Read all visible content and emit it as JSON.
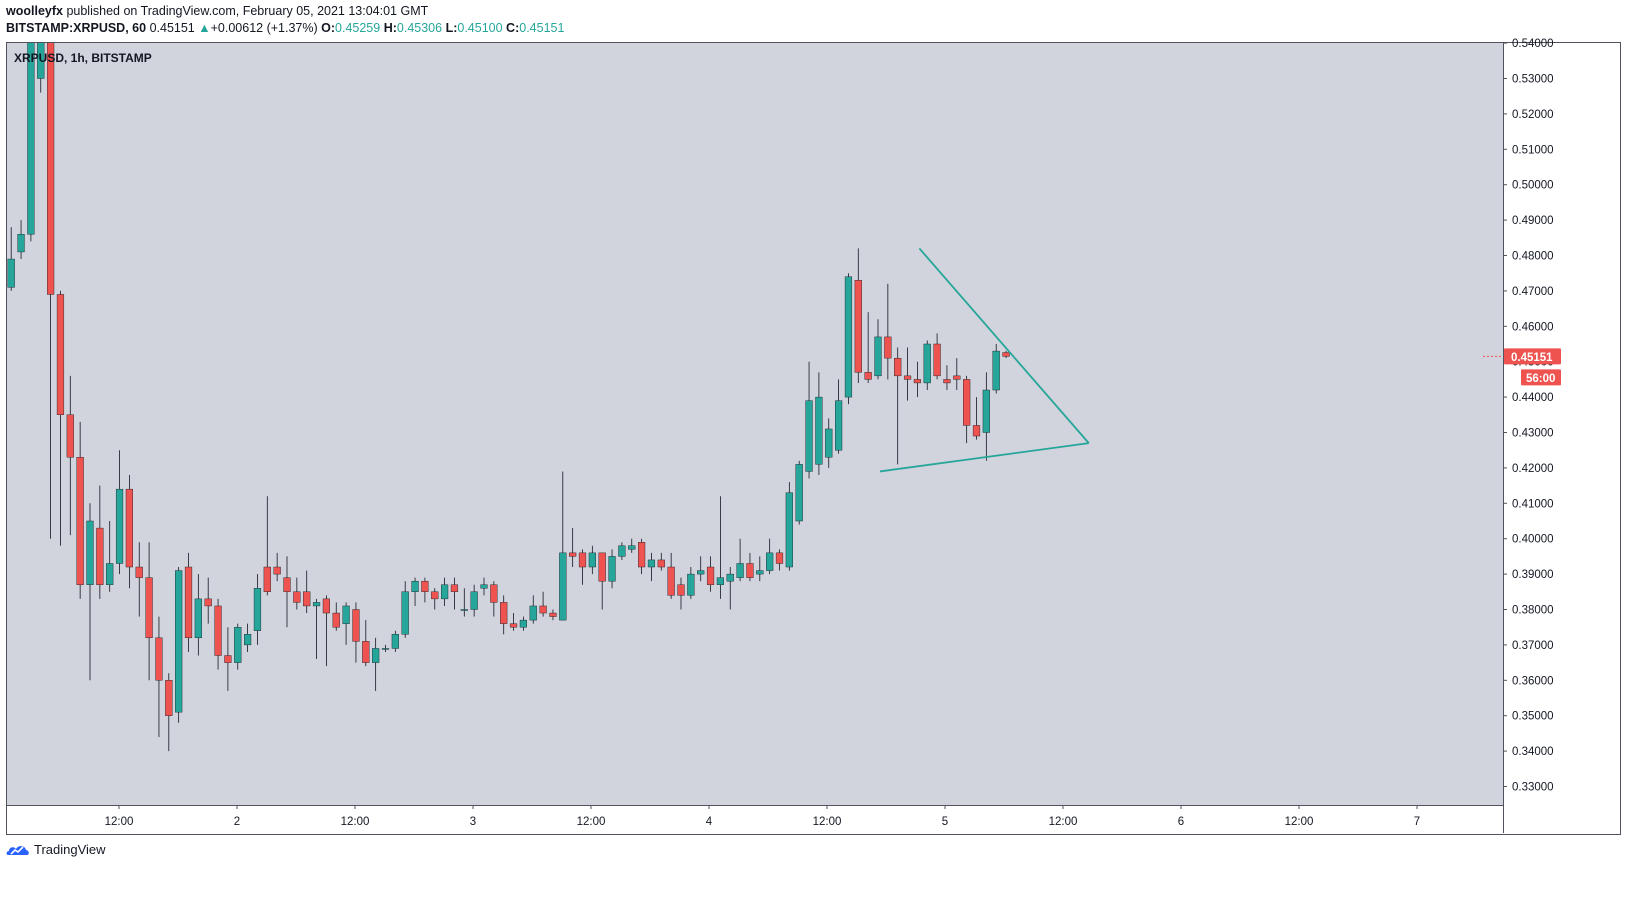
{
  "header": {
    "author": "woolleyfx",
    "published_text": "published on TradingView.com, February 05, 2021 13:04:01 GMT",
    "symbol_line": "BITSTAMP:XRPUSD, 60",
    "last": "0.45151",
    "change_arrow": "▲",
    "change": "+0.00612 (+1.37%)",
    "ohlc": {
      "o_label": "O:",
      "o": "0.45259",
      "h_label": "H:",
      "h": "0.45306",
      "l_label": "L:",
      "l": "0.45100",
      "c_label": "C:",
      "c": "0.45151"
    }
  },
  "chart_label": "XRPUSD, 1h, BITSTAMP",
  "footer": {
    "brand": "TradingView"
  },
  "colors": {
    "background": "#d1d4dc",
    "up": "#26a69a",
    "down": "#ef5350",
    "wick": "#131722",
    "trendline": "#26a69a",
    "price_tag": "#ef5350"
  },
  "chart_data": {
    "type": "candlestick",
    "title": "XRPUSD, 1h, BITSTAMP",
    "ylim": [
      0.325,
      0.545
    ],
    "y_ticks": [
      "0.33000",
      "0.34000",
      "0.35000",
      "0.36000",
      "0.37000",
      "0.38000",
      "0.39000",
      "0.40000",
      "0.41000",
      "0.42000",
      "0.43000",
      "0.44000",
      "0.45000",
      "0.46000",
      "0.47000",
      "0.48000",
      "0.49000",
      "0.50000",
      "0.51000",
      "0.52000",
      "0.53000",
      "0.54000"
    ],
    "x_ticks": [
      "12:00",
      "2",
      "12:00",
      "3",
      "12:00",
      "4",
      "12:00",
      "5",
      "12:00",
      "6",
      "12:00",
      "7"
    ],
    "current_price_label": "0.45151",
    "countdown_label": "56:00",
    "candles": [
      {
        "o": 0.471,
        "h": 0.488,
        "l": 0.47,
        "c": 0.479
      },
      {
        "o": 0.481,
        "h": 0.49,
        "l": 0.479,
        "c": 0.486
      },
      {
        "o": 0.486,
        "h": 0.55,
        "l": 0.484,
        "c": 0.545
      },
      {
        "o": 0.53,
        "h": 0.55,
        "l": 0.526,
        "c": 0.545
      },
      {
        "o": 0.545,
        "h": 0.548,
        "l": 0.4,
        "c": 0.469
      },
      {
        "o": 0.469,
        "h": 0.47,
        "l": 0.398,
        "c": 0.435
      },
      {
        "o": 0.435,
        "h": 0.446,
        "l": 0.401,
        "c": 0.423
      },
      {
        "o": 0.423,
        "h": 0.433,
        "l": 0.383,
        "c": 0.387
      },
      {
        "o": 0.387,
        "h": 0.41,
        "l": 0.36,
        "c": 0.405
      },
      {
        "o": 0.403,
        "h": 0.415,
        "l": 0.383,
        "c": 0.387
      },
      {
        "o": 0.387,
        "h": 0.405,
        "l": 0.385,
        "c": 0.393
      },
      {
        "o": 0.393,
        "h": 0.425,
        "l": 0.39,
        "c": 0.414
      },
      {
        "o": 0.414,
        "h": 0.418,
        "l": 0.386,
        "c": 0.392
      },
      {
        "o": 0.392,
        "h": 0.399,
        "l": 0.378,
        "c": 0.389
      },
      {
        "o": 0.389,
        "h": 0.399,
        "l": 0.36,
        "c": 0.372
      },
      {
        "o": 0.372,
        "h": 0.378,
        "l": 0.344,
        "c": 0.36
      },
      {
        "o": 0.36,
        "h": 0.362,
        "l": 0.34,
        "c": 0.35
      },
      {
        "o": 0.351,
        "h": 0.392,
        "l": 0.348,
        "c": 0.391
      },
      {
        "o": 0.392,
        "h": 0.396,
        "l": 0.368,
        "c": 0.372
      },
      {
        "o": 0.372,
        "h": 0.39,
        "l": 0.367,
        "c": 0.383
      },
      {
        "o": 0.383,
        "h": 0.389,
        "l": 0.376,
        "c": 0.381
      },
      {
        "o": 0.381,
        "h": 0.383,
        "l": 0.363,
        "c": 0.367
      },
      {
        "o": 0.367,
        "h": 0.375,
        "l": 0.357,
        "c": 0.365
      },
      {
        "o": 0.365,
        "h": 0.376,
        "l": 0.363,
        "c": 0.375
      },
      {
        "o": 0.37,
        "h": 0.376,
        "l": 0.368,
        "c": 0.373
      },
      {
        "o": 0.374,
        "h": 0.39,
        "l": 0.37,
        "c": 0.386
      },
      {
        "o": 0.392,
        "h": 0.412,
        "l": 0.384,
        "c": 0.385
      },
      {
        "o": 0.392,
        "h": 0.396,
        "l": 0.388,
        "c": 0.39
      },
      {
        "o": 0.389,
        "h": 0.395,
        "l": 0.375,
        "c": 0.385
      },
      {
        "o": 0.385,
        "h": 0.389,
        "l": 0.38,
        "c": 0.382
      },
      {
        "o": 0.385,
        "h": 0.391,
        "l": 0.379,
        "c": 0.381
      },
      {
        "o": 0.381,
        "h": 0.383,
        "l": 0.366,
        "c": 0.382
      },
      {
        "o": 0.383,
        "h": 0.384,
        "l": 0.364,
        "c": 0.379
      },
      {
        "o": 0.379,
        "h": 0.382,
        "l": 0.374,
        "c": 0.375
      },
      {
        "o": 0.376,
        "h": 0.382,
        "l": 0.37,
        "c": 0.381
      },
      {
        "o": 0.38,
        "h": 0.382,
        "l": 0.365,
        "c": 0.371
      },
      {
        "o": 0.371,
        "h": 0.377,
        "l": 0.364,
        "c": 0.365
      },
      {
        "o": 0.365,
        "h": 0.372,
        "l": 0.357,
        "c": 0.369
      },
      {
        "o": 0.369,
        "h": 0.37,
        "l": 0.368,
        "c": 0.369
      },
      {
        "o": 0.369,
        "h": 0.374,
        "l": 0.368,
        "c": 0.373
      },
      {
        "o": 0.373,
        "h": 0.388,
        "l": 0.372,
        "c": 0.385
      },
      {
        "o": 0.385,
        "h": 0.389,
        "l": 0.381,
        "c": 0.388
      },
      {
        "o": 0.388,
        "h": 0.389,
        "l": 0.382,
        "c": 0.385
      },
      {
        "o": 0.385,
        "h": 0.386,
        "l": 0.38,
        "c": 0.383
      },
      {
        "o": 0.383,
        "h": 0.389,
        "l": 0.381,
        "c": 0.387
      },
      {
        "o": 0.387,
        "h": 0.389,
        "l": 0.38,
        "c": 0.385
      },
      {
        "o": 0.38,
        "h": 0.386,
        "l": 0.378,
        "c": 0.38
      },
      {
        "o": 0.38,
        "h": 0.387,
        "l": 0.378,
        "c": 0.385
      },
      {
        "o": 0.386,
        "h": 0.389,
        "l": 0.384,
        "c": 0.387
      },
      {
        "o": 0.387,
        "h": 0.388,
        "l": 0.378,
        "c": 0.382
      },
      {
        "o": 0.382,
        "h": 0.384,
        "l": 0.373,
        "c": 0.376
      },
      {
        "o": 0.376,
        "h": 0.379,
        "l": 0.374,
        "c": 0.375
      },
      {
        "o": 0.375,
        "h": 0.378,
        "l": 0.374,
        "c": 0.377
      },
      {
        "o": 0.377,
        "h": 0.384,
        "l": 0.376,
        "c": 0.381
      },
      {
        "o": 0.381,
        "h": 0.385,
        "l": 0.378,
        "c": 0.379
      },
      {
        "o": 0.379,
        "h": 0.38,
        "l": 0.377,
        "c": 0.378
      },
      {
        "o": 0.377,
        "h": 0.419,
        "l": 0.377,
        "c": 0.396
      },
      {
        "o": 0.396,
        "h": 0.403,
        "l": 0.392,
        "c": 0.395
      },
      {
        "o": 0.396,
        "h": 0.397,
        "l": 0.387,
        "c": 0.392
      },
      {
        "o": 0.392,
        "h": 0.398,
        "l": 0.39,
        "c": 0.396
      },
      {
        "o": 0.396,
        "h": 0.396,
        "l": 0.38,
        "c": 0.388
      },
      {
        "o": 0.388,
        "h": 0.397,
        "l": 0.386,
        "c": 0.395
      },
      {
        "o": 0.395,
        "h": 0.399,
        "l": 0.394,
        "c": 0.398
      },
      {
        "o": 0.397,
        "h": 0.4,
        "l": 0.396,
        "c": 0.398
      },
      {
        "o": 0.399,
        "h": 0.4,
        "l": 0.39,
        "c": 0.392
      },
      {
        "o": 0.392,
        "h": 0.396,
        "l": 0.388,
        "c": 0.394
      },
      {
        "o": 0.394,
        "h": 0.396,
        "l": 0.391,
        "c": 0.392
      },
      {
        "o": 0.392,
        "h": 0.396,
        "l": 0.383,
        "c": 0.384
      },
      {
        "o": 0.387,
        "h": 0.389,
        "l": 0.38,
        "c": 0.384
      },
      {
        "o": 0.384,
        "h": 0.392,
        "l": 0.383,
        "c": 0.39
      },
      {
        "o": 0.39,
        "h": 0.395,
        "l": 0.388,
        "c": 0.391
      },
      {
        "o": 0.392,
        "h": 0.395,
        "l": 0.385,
        "c": 0.387
      },
      {
        "o": 0.387,
        "h": 0.412,
        "l": 0.383,
        "c": 0.389
      },
      {
        "o": 0.388,
        "h": 0.392,
        "l": 0.38,
        "c": 0.39
      },
      {
        "o": 0.389,
        "h": 0.4,
        "l": 0.388,
        "c": 0.393
      },
      {
        "o": 0.393,
        "h": 0.396,
        "l": 0.388,
        "c": 0.389
      },
      {
        "o": 0.39,
        "h": 0.395,
        "l": 0.388,
        "c": 0.391
      },
      {
        "o": 0.391,
        "h": 0.4,
        "l": 0.39,
        "c": 0.396
      },
      {
        "o": 0.396,
        "h": 0.397,
        "l": 0.391,
        "c": 0.393
      },
      {
        "o": 0.392,
        "h": 0.416,
        "l": 0.391,
        "c": 0.413
      },
      {
        "o": 0.405,
        "h": 0.422,
        "l": 0.404,
        "c": 0.421
      },
      {
        "o": 0.419,
        "h": 0.45,
        "l": 0.417,
        "c": 0.439
      },
      {
        "o": 0.421,
        "h": 0.447,
        "l": 0.418,
        "c": 0.44
      },
      {
        "o": 0.423,
        "h": 0.434,
        "l": 0.42,
        "c": 0.431
      },
      {
        "o": 0.425,
        "h": 0.445,
        "l": 0.424,
        "c": 0.439
      },
      {
        "o": 0.44,
        "h": 0.475,
        "l": 0.438,
        "c": 0.474
      },
      {
        "o": 0.473,
        "h": 0.482,
        "l": 0.444,
        "c": 0.447
      },
      {
        "o": 0.447,
        "h": 0.464,
        "l": 0.444,
        "c": 0.445
      },
      {
        "o": 0.446,
        "h": 0.462,
        "l": 0.445,
        "c": 0.457
      },
      {
        "o": 0.457,
        "h": 0.472,
        "l": 0.445,
        "c": 0.451
      },
      {
        "o": 0.451,
        "h": 0.454,
        "l": 0.421,
        "c": 0.446
      },
      {
        "o": 0.446,
        "h": 0.454,
        "l": 0.439,
        "c": 0.445
      },
      {
        "o": 0.445,
        "h": 0.45,
        "l": 0.44,
        "c": 0.444
      },
      {
        "o": 0.444,
        "h": 0.456,
        "l": 0.442,
        "c": 0.455
      },
      {
        "o": 0.455,
        "h": 0.458,
        "l": 0.445,
        "c": 0.446
      },
      {
        "o": 0.445,
        "h": 0.449,
        "l": 0.442,
        "c": 0.444
      },
      {
        "o": 0.446,
        "h": 0.451,
        "l": 0.442,
        "c": 0.445
      },
      {
        "o": 0.445,
        "h": 0.446,
        "l": 0.427,
        "c": 0.432
      },
      {
        "o": 0.432,
        "h": 0.44,
        "l": 0.428,
        "c": 0.429
      },
      {
        "o": 0.43,
        "h": 0.447,
        "l": 0.422,
        "c": 0.442
      },
      {
        "o": 0.442,
        "h": 0.455,
        "l": 0.441,
        "c": 0.453
      },
      {
        "o": 0.4526,
        "h": 0.4531,
        "l": 0.451,
        "c": 0.4515
      }
    ],
    "trendlines": [
      {
        "from": {
          "i": 92.2,
          "p": 0.482
        },
        "to": {
          "i": 109.4,
          "p": 0.427
        }
      },
      {
        "from": {
          "i": 88.2,
          "p": 0.419
        },
        "to": {
          "i": 109.4,
          "p": 0.427
        }
      }
    ]
  }
}
